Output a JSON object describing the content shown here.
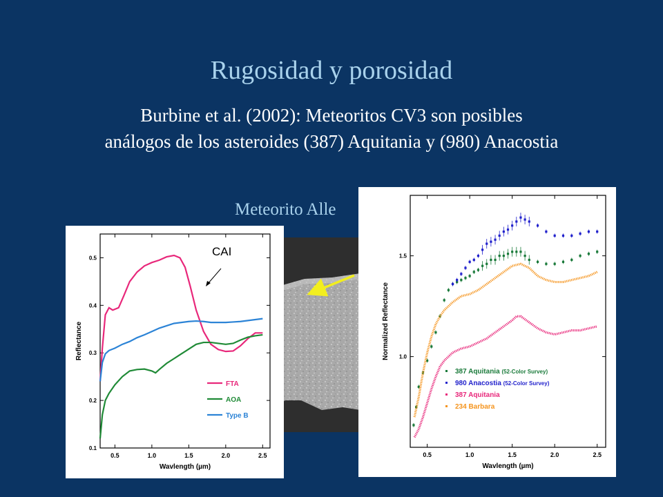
{
  "slide": {
    "title": "Rugosidad y porosidad",
    "subtitle_line1": "Burbine et al. (2002): Meteoritos CV3 son posibles",
    "subtitle_line2": "análogos de los asteroides (387) Aquitania y (980) Anacostia",
    "meteorite_label": "Meteorito Alle"
  },
  "colors": {
    "background": "#0b3463",
    "title": "#a9d2ec",
    "arrow": "#f2ee1e",
    "FTA": "#e8277a",
    "AOA": "#1f8a36",
    "TypeB": "#2b83d6",
    "aquitania_survey": "#1a7a3a",
    "anacostia_survey": "#2222cc",
    "aquitania": "#e8277a",
    "barbara": "#f5941d"
  },
  "chart_data": [
    {
      "type": "line",
      "xlabel": "Wavlength (µm)",
      "ylabel": "Reflectance",
      "xlim": [
        0.3,
        2.6
      ],
      "ylim": [
        0.1,
        0.55
      ],
      "xticks": [
        "0.5",
        "1.0",
        "1.5",
        "2.0",
        "2.5"
      ],
      "yticks": [
        "0.1",
        "0.2",
        "0.3",
        "0.4",
        "0.5"
      ],
      "annotation": "CAI",
      "legend_position": "bottom-right",
      "series": [
        {
          "name": "FTA",
          "color_key": "FTA",
          "x": [
            0.3,
            0.33,
            0.37,
            0.42,
            0.47,
            0.55,
            0.62,
            0.7,
            0.8,
            0.9,
            1.0,
            1.1,
            1.2,
            1.3,
            1.38,
            1.45,
            1.52,
            1.6,
            1.7,
            1.8,
            1.9,
            2.0,
            2.1,
            2.2,
            2.3,
            2.4,
            2.5
          ],
          "y": [
            0.24,
            0.31,
            0.38,
            0.395,
            0.39,
            0.395,
            0.42,
            0.45,
            0.47,
            0.483,
            0.49,
            0.495,
            0.502,
            0.505,
            0.5,
            0.48,
            0.44,
            0.39,
            0.345,
            0.318,
            0.307,
            0.303,
            0.304,
            0.315,
            0.33,
            0.342,
            0.342
          ]
        },
        {
          "name": "AOA",
          "color_key": "AOA",
          "x": [
            0.3,
            0.33,
            0.37,
            0.42,
            0.5,
            0.6,
            0.7,
            0.8,
            0.9,
            1.0,
            1.05,
            1.1,
            1.2,
            1.3,
            1.4,
            1.5,
            1.6,
            1.7,
            1.8,
            1.9,
            2.0,
            2.1,
            2.2,
            2.3,
            2.4,
            2.5
          ],
          "y": [
            0.12,
            0.17,
            0.2,
            0.215,
            0.233,
            0.25,
            0.262,
            0.265,
            0.266,
            0.262,
            0.258,
            0.265,
            0.278,
            0.288,
            0.298,
            0.308,
            0.318,
            0.322,
            0.322,
            0.32,
            0.318,
            0.32,
            0.327,
            0.333,
            0.336,
            0.338
          ]
        },
        {
          "name": "Type B",
          "color_key": "TypeB",
          "x": [
            0.3,
            0.33,
            0.37,
            0.42,
            0.5,
            0.6,
            0.7,
            0.8,
            0.9,
            1.0,
            1.1,
            1.2,
            1.3,
            1.4,
            1.5,
            1.6,
            1.7,
            1.8,
            1.9,
            2.0,
            2.1,
            2.2,
            2.3,
            2.4,
            2.5
          ],
          "y": [
            0.24,
            0.28,
            0.298,
            0.305,
            0.31,
            0.318,
            0.324,
            0.332,
            0.338,
            0.345,
            0.352,
            0.357,
            0.362,
            0.364,
            0.366,
            0.367,
            0.366,
            0.364,
            0.364,
            0.364,
            0.365,
            0.366,
            0.368,
            0.37,
            0.372
          ]
        }
      ]
    },
    {
      "type": "scatter",
      "xlabel": "Wavlength (µm)",
      "ylabel": "Normalized Reflectance",
      "xlim": [
        0.3,
        2.6
      ],
      "ylim": [
        0.55,
        1.8
      ],
      "xticks": [
        "0.5",
        "1.0",
        "1.5",
        "2.0",
        "2.5"
      ],
      "yticks": [
        "1.0",
        "1.5"
      ],
      "legend_position": "bottom-right",
      "series": [
        {
          "name": "387 Aquitania",
          "note": "(52-Color Survey)",
          "color_key": "aquitania_survey",
          "x": [
            0.34,
            0.37,
            0.4,
            0.45,
            0.5,
            0.55,
            0.6,
            0.65,
            0.7,
            0.75,
            0.8,
            0.85,
            0.9,
            0.95,
            1.0,
            1.05,
            1.1,
            1.15,
            1.2,
            1.25,
            1.3,
            1.35,
            1.4,
            1.45,
            1.5,
            1.55,
            1.6,
            1.65,
            1.7,
            1.8,
            1.9,
            2.0,
            2.1,
            2.2,
            2.3,
            2.4,
            2.5
          ],
          "y": [
            0.66,
            0.75,
            0.85,
            0.92,
            0.98,
            1.05,
            1.12,
            1.2,
            1.28,
            1.33,
            1.36,
            1.37,
            1.38,
            1.39,
            1.4,
            1.42,
            1.43,
            1.45,
            1.46,
            1.48,
            1.48,
            1.5,
            1.5,
            1.51,
            1.52,
            1.52,
            1.52,
            1.5,
            1.48,
            1.47,
            1.46,
            1.46,
            1.47,
            1.48,
            1.5,
            1.51,
            1.52
          ]
        },
        {
          "name": "980 Anacostia",
          "note": "(52-Color Survey)",
          "color_key": "anacostia_survey",
          "x": [
            0.8,
            0.85,
            0.9,
            0.95,
            1.0,
            1.05,
            1.1,
            1.15,
            1.2,
            1.25,
            1.3,
            1.35,
            1.4,
            1.45,
            1.5,
            1.55,
            1.6,
            1.65,
            1.7,
            1.8,
            1.9,
            2.0,
            2.1,
            2.2,
            2.3,
            2.4,
            2.5
          ],
          "y": [
            1.36,
            1.38,
            1.41,
            1.44,
            1.47,
            1.48,
            1.5,
            1.53,
            1.56,
            1.57,
            1.58,
            1.6,
            1.62,
            1.63,
            1.65,
            1.67,
            1.69,
            1.68,
            1.67,
            1.65,
            1.62,
            1.6,
            1.6,
            1.6,
            1.61,
            1.62,
            1.62
          ]
        },
        {
          "name": "387 Aquitania",
          "color_key": "aquitania",
          "x": [
            0.35,
            0.4,
            0.45,
            0.5,
            0.55,
            0.6,
            0.65,
            0.7,
            0.8,
            0.9,
            1.0,
            1.1,
            1.2,
            1.3,
            1.4,
            1.5,
            1.55,
            1.6,
            1.7,
            1.8,
            1.9,
            2.0,
            2.1,
            2.2,
            2.3,
            2.4,
            2.5
          ],
          "y": [
            0.6,
            0.64,
            0.7,
            0.77,
            0.84,
            0.9,
            0.95,
            0.98,
            1.02,
            1.04,
            1.05,
            1.07,
            1.09,
            1.12,
            1.15,
            1.18,
            1.2,
            1.2,
            1.17,
            1.14,
            1.12,
            1.11,
            1.12,
            1.13,
            1.13,
            1.14,
            1.15
          ]
        },
        {
          "name": "234 Barbara",
          "color_key": "barbara",
          "x": [
            0.35,
            0.4,
            0.45,
            0.5,
            0.55,
            0.6,
            0.65,
            0.7,
            0.8,
            0.9,
            1.0,
            1.1,
            1.2,
            1.3,
            1.4,
            1.5,
            1.6,
            1.7,
            1.8,
            1.9,
            2.0,
            2.1,
            2.2,
            2.3,
            2.4,
            2.5
          ],
          "y": [
            0.7,
            0.8,
            0.92,
            1.02,
            1.1,
            1.16,
            1.2,
            1.23,
            1.27,
            1.3,
            1.31,
            1.33,
            1.36,
            1.39,
            1.42,
            1.45,
            1.46,
            1.44,
            1.4,
            1.38,
            1.37,
            1.37,
            1.38,
            1.39,
            1.4,
            1.42
          ]
        }
      ]
    }
  ]
}
